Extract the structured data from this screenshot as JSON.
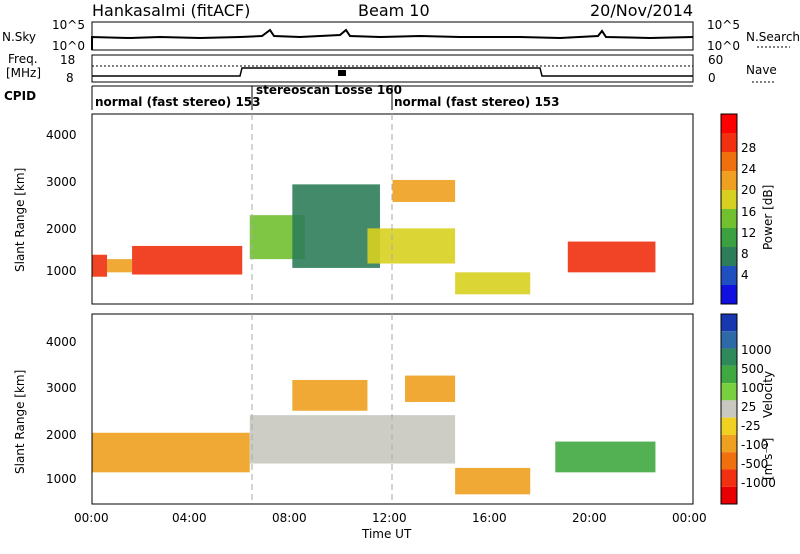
{
  "header": {
    "station": "Hankasalmi (fitACF)",
    "beam": "Beam 10",
    "date": "20/Nov/2014"
  },
  "sky_panel": {
    "left_label": "N.Sky",
    "right_label": "N.Search",
    "left_ticks": [
      "10^5",
      "10^0"
    ],
    "right_ticks": [
      "10^5",
      "10^0"
    ]
  },
  "freq_panel": {
    "left_label_1": "Freq.",
    "left_label_2": "[MHz]",
    "right_label": "Nave",
    "left_ticks": [
      "18",
      "8"
    ],
    "right_ticks": [
      "60",
      "0"
    ]
  },
  "cpid": {
    "label": "CPID",
    "segments": [
      {
        "text": "normal (fast stereo) 153",
        "start_h": 0,
        "end_h": 6.3
      },
      {
        "text": "stereoscan Losse 160",
        "start_h": 6.3,
        "end_h": 12
      },
      {
        "text": "normal (fast stereo) 153",
        "start_h": 12,
        "end_h": 24
      }
    ]
  },
  "power_panel": {
    "ylabel": "Slant Range [km]",
    "yticks": [
      "4000",
      "3000",
      "2000",
      "1000"
    ],
    "colorbar_label": "Power [dB]",
    "colorbar_ticks": [
      "28",
      "24",
      "20",
      "16",
      "12",
      "8",
      "4"
    ],
    "colors": [
      "#1010e0",
      "#2050c0",
      "#2e7d5a",
      "#3aa040",
      "#70c030",
      "#d8d020",
      "#f0a020",
      "#f07010",
      "#f03010",
      "#ff0000"
    ]
  },
  "velocity_panel": {
    "ylabel": "Slant Range [km]",
    "yticks": [
      "4000",
      "3000",
      "2000",
      "1000"
    ],
    "colorbar_label": "Velocity",
    "colorbar_unit": "[m s⁻¹]",
    "colorbar_ticks": [
      "1000",
      "500",
      "100",
      "25",
      "-25",
      "-100",
      "-500",
      "-1000"
    ],
    "colors": [
      "#1838b0",
      "#2f6aa8",
      "#2e8a5a",
      "#40a840",
      "#78d040",
      "#c8c8c0",
      "#f0d020",
      "#f0a020",
      "#f07010",
      "#f03010",
      "#e80000"
    ]
  },
  "xaxis": {
    "label": "Time UT",
    "ticks": [
      "00:00",
      "04:00",
      "08:00",
      "12:00",
      "16:00",
      "20:00",
      "00:00"
    ]
  },
  "chart_data": {
    "type": "heatmap",
    "x_range_hours": [
      0,
      24
    ],
    "y_range_km": [
      180,
      4500
    ],
    "power_bands": [
      {
        "t0": 0.0,
        "t1": 0.6,
        "r0": 800,
        "r1": 1300,
        "db": 26
      },
      {
        "t0": 0.6,
        "t1": 1.6,
        "r0": 900,
        "r1": 1200,
        "db": 20
      },
      {
        "t0": 1.6,
        "t1": 6.0,
        "r0": 850,
        "r1": 1500,
        "db": 26
      },
      {
        "t0": 6.3,
        "t1": 8.5,
        "r0": 1200,
        "r1": 2200,
        "db": 14
      },
      {
        "t0": 8.0,
        "t1": 11.5,
        "r0": 1000,
        "r1": 2900,
        "db": 6
      },
      {
        "t0": 11.0,
        "t1": 14.5,
        "r0": 1100,
        "r1": 1900,
        "db": 16
      },
      {
        "t0": 12.0,
        "t1": 14.5,
        "r0": 2500,
        "r1": 3000,
        "db": 20
      },
      {
        "t0": 14.5,
        "t1": 17.5,
        "r0": 400,
        "r1": 900,
        "db": 18
      },
      {
        "t0": 19.0,
        "t1": 22.5,
        "r0": 900,
        "r1": 1600,
        "db": 26
      }
    ],
    "velocity_bands": [
      {
        "t0": 0.0,
        "t1": 6.3,
        "r0": 900,
        "r1": 1800,
        "v": -100
      },
      {
        "t0": 6.3,
        "t1": 14.5,
        "r0": 1100,
        "r1": 2200,
        "v": 0
      },
      {
        "t0": 8.0,
        "t1": 11.0,
        "r0": 2300,
        "r1": 3000,
        "v": -100
      },
      {
        "t0": 12.5,
        "t1": 14.5,
        "r0": 2500,
        "r1": 3100,
        "v": -100
      },
      {
        "t0": 14.5,
        "t1": 17.5,
        "r0": 400,
        "r1": 1000,
        "v": -100
      },
      {
        "t0": 18.5,
        "t1": 22.5,
        "r0": 900,
        "r1": 1600,
        "v": 100
      }
    ]
  }
}
